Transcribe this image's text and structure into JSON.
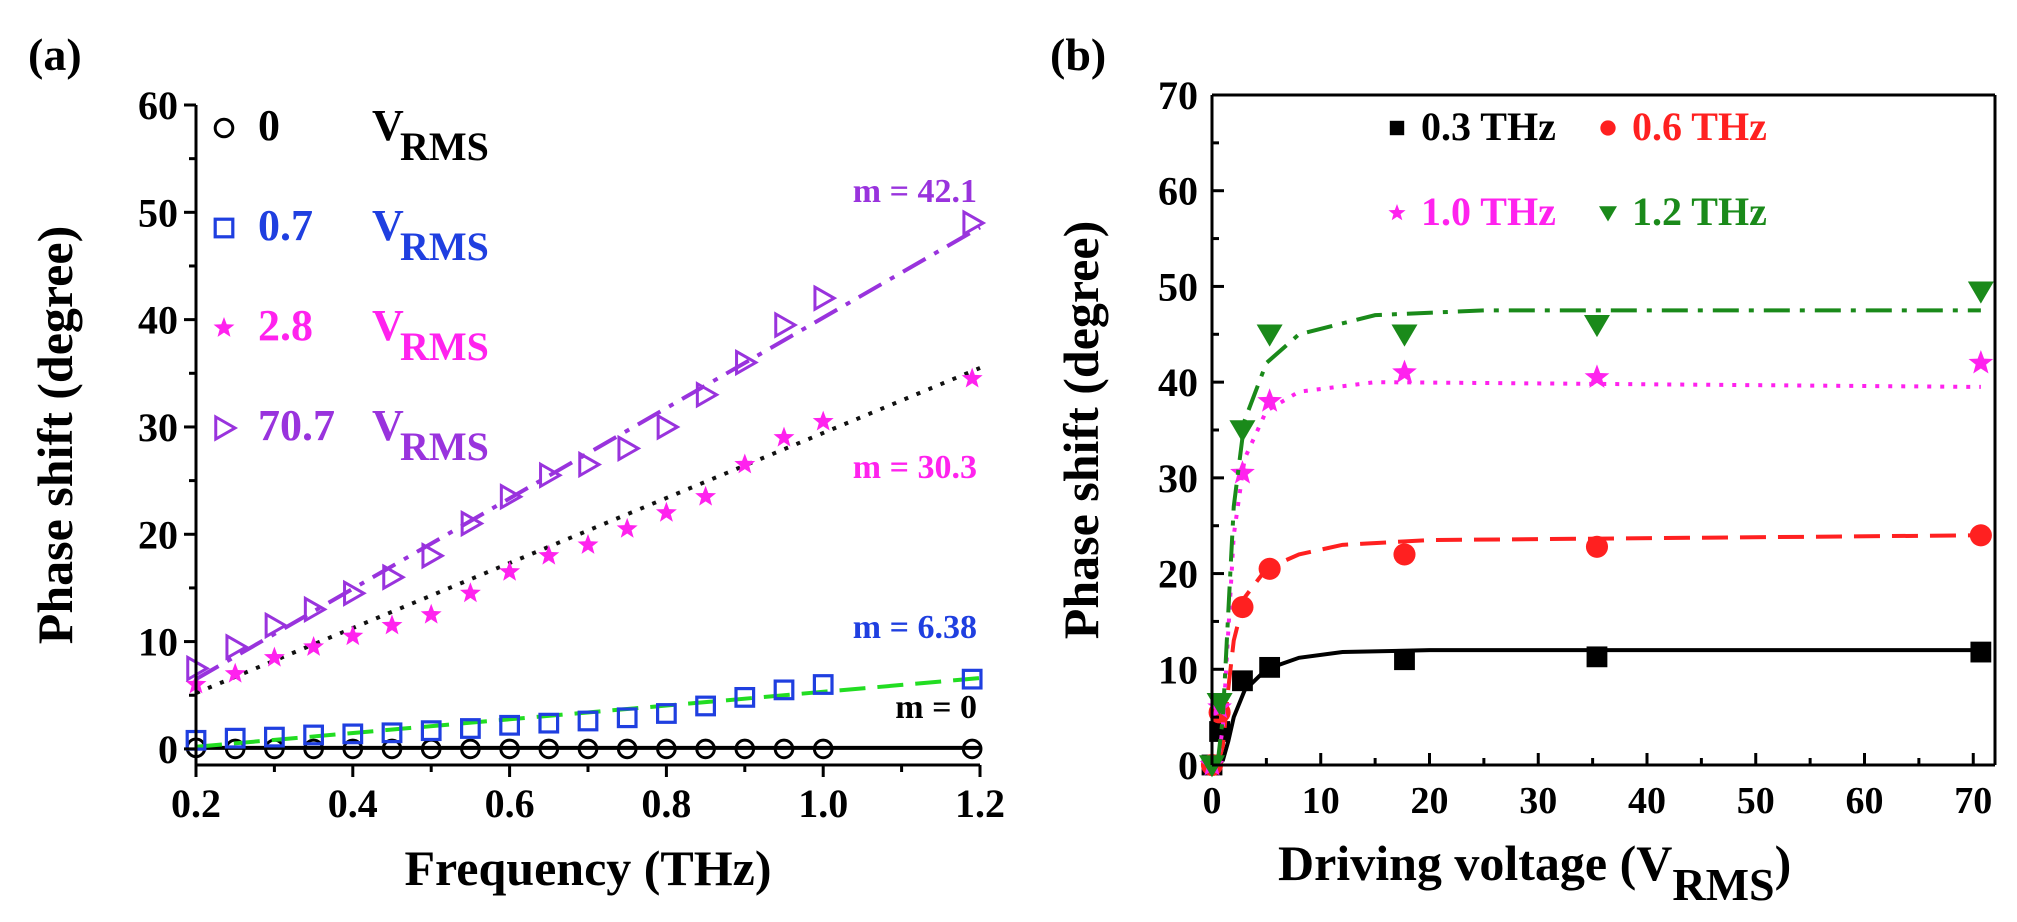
{
  "chart_data": [
    {
      "panel": "(a)",
      "type": "scatter",
      "xlabel": "Frequency (THz)",
      "ylabel": "Phase shift (degree)",
      "xlim": [
        0.2,
        1.2
      ],
      "ylim": [
        -1.5,
        60
      ],
      "x_ticks": [
        "0.2",
        "0.4",
        "0.6",
        "0.8",
        "1.0",
        "1.2"
      ],
      "y_ticks": [
        "0",
        "10",
        "20",
        "30",
        "40",
        "50",
        "60"
      ],
      "legend_position": "top-left",
      "series": [
        {
          "label_num": "0",
          "label_unit": "V",
          "label_sub": "RMS",
          "marker": "circle",
          "color": "#000000",
          "fit_color": "#000000",
          "fit_style": "solid",
          "annotation": "m = 0",
          "annotation_color": "#000000",
          "fit": [
            [
              0.2,
              0.1
            ],
            [
              1.2,
              0.1
            ]
          ],
          "x": [
            0.2,
            0.25,
            0.3,
            0.35,
            0.4,
            0.45,
            0.5,
            0.55,
            0.6,
            0.65,
            0.7,
            0.75,
            0.8,
            0.85,
            0.9,
            0.95,
            1.0,
            1.19
          ],
          "y": [
            0.1,
            0,
            0,
            0,
            0,
            0,
            0,
            0,
            0,
            0,
            0,
            0,
            0,
            0,
            0,
            0,
            0,
            0
          ]
        },
        {
          "label_num": "0.7",
          "label_unit": "V",
          "label_sub": "RMS",
          "marker": "square",
          "color": "#1f3fe0",
          "fit_color": "#22dd22",
          "fit_style": "dash",
          "annotation": "m = 6.38",
          "annotation_color": "#1f3fe0",
          "fit": [
            [
              0.2,
              0.2
            ],
            [
              1.2,
              6.6
            ]
          ],
          "x": [
            0.2,
            0.25,
            0.3,
            0.35,
            0.4,
            0.45,
            0.5,
            0.55,
            0.6,
            0.65,
            0.7,
            0.75,
            0.8,
            0.85,
            0.9,
            0.95,
            1.0,
            1.19
          ],
          "y": [
            0.8,
            1.0,
            1.1,
            1.3,
            1.4,
            1.5,
            1.7,
            1.9,
            2.2,
            2.4,
            2.6,
            2.9,
            3.3,
            4.0,
            4.8,
            5.5,
            6.0,
            6.5
          ]
        },
        {
          "label_num": "2.8",
          "label_unit": "V",
          "label_sub": "RMS",
          "marker": "star",
          "color": "#ff22ee",
          "fit_color": "#111111",
          "fit_style": "dot",
          "annotation": "m = 30.3",
          "annotation_color": "#ff22ee",
          "fit": [
            [
              0.2,
              5.2
            ],
            [
              1.2,
              35.5
            ]
          ],
          "x": [
            0.2,
            0.25,
            0.3,
            0.35,
            0.4,
            0.45,
            0.5,
            0.55,
            0.6,
            0.65,
            0.7,
            0.75,
            0.8,
            0.85,
            0.9,
            0.95,
            1.0,
            1.19
          ],
          "y": [
            6.0,
            7.0,
            8.5,
            9.5,
            10.5,
            11.5,
            12.5,
            14.5,
            16.5,
            18.0,
            19.0,
            20.5,
            22.0,
            23.5,
            26.5,
            29.0,
            30.5,
            34.5
          ]
        },
        {
          "label_num": "70.7",
          "label_unit": "V",
          "label_sub": "RMS",
          "marker": "triangle-right",
          "color": "#9933dd",
          "fit_color": "#9933dd",
          "fit_style": "dashdot",
          "annotation": "m = 42.1",
          "annotation_color": "#9933dd",
          "fit": [
            [
              0.2,
              6.5
            ],
            [
              1.2,
              48.6
            ]
          ],
          "x": [
            0.2,
            0.25,
            0.3,
            0.35,
            0.4,
            0.45,
            0.5,
            0.55,
            0.6,
            0.65,
            0.7,
            0.75,
            0.8,
            0.85,
            0.9,
            0.95,
            1.0,
            1.19
          ],
          "y": [
            7.5,
            9.5,
            11.5,
            13.0,
            14.5,
            16.0,
            18.0,
            21.0,
            23.5,
            25.5,
            26.5,
            28.0,
            30.0,
            33.0,
            36.0,
            39.5,
            42.0,
            49.0
          ]
        }
      ]
    },
    {
      "panel": "(b)",
      "type": "scatter",
      "xlabel_main": "Driving voltage (V",
      "xlabel_sub": "RMS",
      "xlabel_close": ")",
      "ylabel": "Phase shift (degree)",
      "xlim": [
        0,
        72
      ],
      "ylim": [
        0,
        70
      ],
      "x_ticks": [
        "0",
        "10",
        "20",
        "30",
        "40",
        "50",
        "60",
        "70"
      ],
      "y_ticks": [
        "0",
        "10",
        "20",
        "30",
        "40",
        "50",
        "60",
        "70"
      ],
      "legend_position": "top",
      "series": [
        {
          "label": "0.3 THz",
          "marker": "square",
          "color": "#000000",
          "fit_style": "solid",
          "fit_color": "#000000",
          "x": [
            0,
            0.7,
            2.8,
            5.3,
            17.7,
            35.4,
            70.7
          ],
          "y": [
            0,
            3.5,
            8.8,
            10.2,
            11.0,
            11.3,
            11.8
          ],
          "fit": [
            [
              0.5,
              0
            ],
            [
              1.0,
              0.5
            ],
            [
              1.5,
              2.5
            ],
            [
              2.0,
              5.0
            ],
            [
              3.0,
              7.8
            ],
            [
              5.0,
              10.0
            ],
            [
              8.0,
              11.2
            ],
            [
              12,
              11.8
            ],
            [
              20,
              12.0
            ],
            [
              70.7,
              12.0
            ]
          ]
        },
        {
          "label": "0.6 THz",
          "marker": "circle",
          "color": "#ff2020",
          "fit_style": "dash",
          "fit_color": "#ff2020",
          "x": [
            0,
            0.7,
            2.8,
            5.3,
            17.7,
            35.4,
            70.7
          ],
          "y": [
            0,
            5.5,
            16.5,
            20.5,
            22.0,
            22.8,
            24.0
          ],
          "fit": [
            [
              0.5,
              0
            ],
            [
              1.0,
              2.0
            ],
            [
              1.5,
              8.0
            ],
            [
              2.0,
              13.0
            ],
            [
              3.0,
              17.5
            ],
            [
              5.0,
              20.5
            ],
            [
              8.0,
              22.0
            ],
            [
              12,
              23.0
            ],
            [
              20,
              23.5
            ],
            [
              70.7,
              24.0
            ]
          ]
        },
        {
          "label": "1.0 THz",
          "marker": "star",
          "color": "#ff22ee",
          "fit_style": "dot",
          "fit_color": "#ff22ee",
          "x": [
            0,
            0.7,
            2.8,
            5.3,
            17.7,
            35.4,
            70.7
          ],
          "y": [
            0,
            6.0,
            30.5,
            38.0,
            41.0,
            40.5,
            42.0
          ],
          "fit": [
            [
              0.5,
              0
            ],
            [
              1.0,
              4.0
            ],
            [
              1.5,
              14.0
            ],
            [
              2.0,
              24.0
            ],
            [
              3.0,
              32.0
            ],
            [
              5.0,
              37.0
            ],
            [
              8.0,
              39.0
            ],
            [
              15,
              40.0
            ],
            [
              70.7,
              39.5
            ]
          ]
        },
        {
          "label": "1.2 THz",
          "marker": "triangle-down",
          "color": "#1a8a1a",
          "fit_style": "dashdot",
          "fit_color": "#1a8a1a",
          "x": [
            0,
            0.7,
            2.8,
            5.3,
            17.7,
            35.4,
            70.7
          ],
          "y": [
            0,
            6.5,
            35.0,
            45.0,
            45.0,
            46.0,
            49.5
          ],
          "fit": [
            [
              0.5,
              0
            ],
            [
              1.0,
              5.0
            ],
            [
              1.5,
              16.0
            ],
            [
              2.0,
              27.0
            ],
            [
              3.0,
              36.0
            ],
            [
              5.0,
              42.0
            ],
            [
              8.0,
              45.0
            ],
            [
              15,
              47.0
            ],
            [
              25,
              47.5
            ],
            [
              70.7,
              47.5
            ]
          ]
        }
      ]
    }
  ],
  "panel_labels": {
    "a": "(a)",
    "b": "(b)"
  }
}
